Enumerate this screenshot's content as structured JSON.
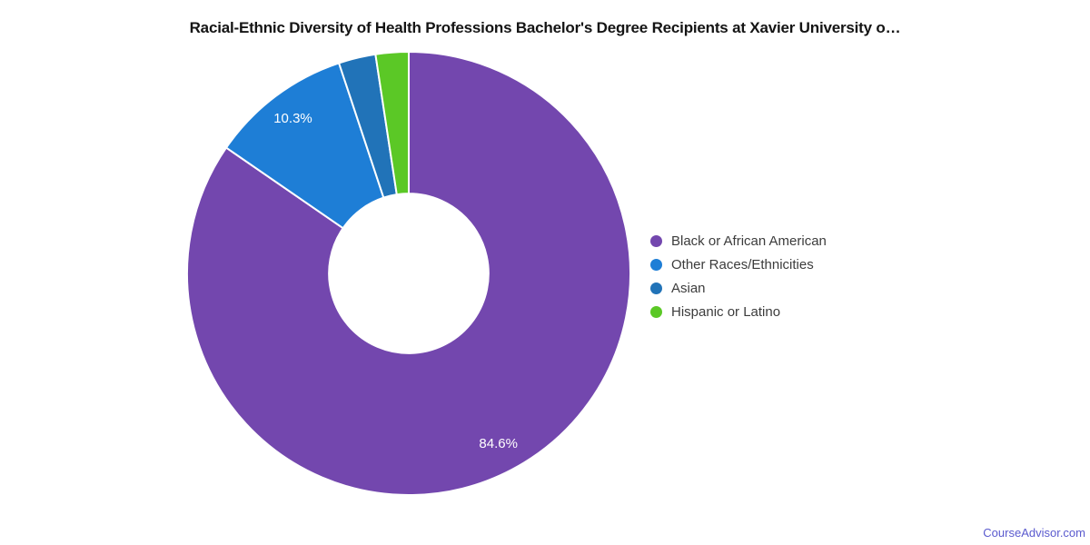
{
  "chart_data": {
    "type": "pie",
    "subtype": "donut",
    "title": "Racial-Ethnic Diversity of Health Professions Bachelor's Degree Recipients at Xavier University o…",
    "series": [
      {
        "name": "Black or African American",
        "value": 84.6,
        "label": "84.6%",
        "color": "#7347AE"
      },
      {
        "name": "Other Races/Ethnicities",
        "value": 10.3,
        "label": "10.3%",
        "color": "#1E7ED6"
      },
      {
        "name": "Asian",
        "value": 2.7,
        "label": "",
        "color": "#2173B8"
      },
      {
        "name": "Hispanic or Latino",
        "value": 2.4,
        "label": "",
        "color": "#5BC826"
      }
    ],
    "direction": "clockwise",
    "start_angle_deg": 0,
    "inner_radius_ratio": 0.36,
    "label_radius_ratio": 0.87,
    "slice_label_color": "#FFFFFF",
    "legend_position": "right",
    "background": "#FFFFFF"
  },
  "footer": {
    "link_text": "CourseAdvisor.com"
  }
}
